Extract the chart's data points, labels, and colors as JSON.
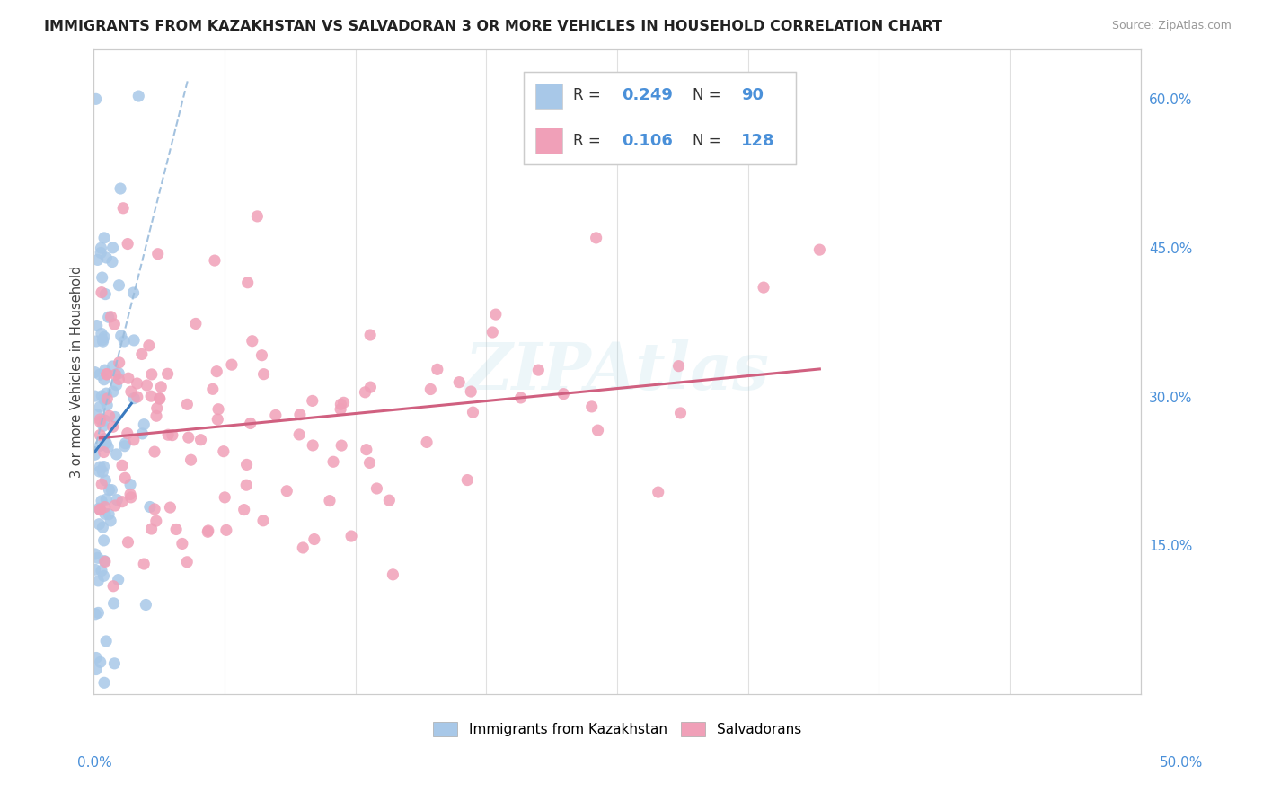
{
  "title": "IMMIGRANTS FROM KAZAKHSTAN VS SALVADORAN 3 OR MORE VEHICLES IN HOUSEHOLD CORRELATION CHART",
  "source": "Source: ZipAtlas.com",
  "ylabel": "3 or more Vehicles in Household",
  "color_kaz": "#a8c8e8",
  "color_sal": "#f0a0b8",
  "color_kaz_line": "#3a7abf",
  "color_sal_line": "#d06080",
  "color_kaz_dash": "#9abcdc",
  "watermark": "ZIPAtlas",
  "xlim": [
    0.0,
    0.5
  ],
  "ylim": [
    0.0,
    0.65
  ],
  "background_color": "#ffffff",
  "grid_color": "#e0e0e0",
  "R_kaz": 0.249,
  "N_kaz": 90,
  "R_sal": 0.106,
  "N_sal": 128
}
